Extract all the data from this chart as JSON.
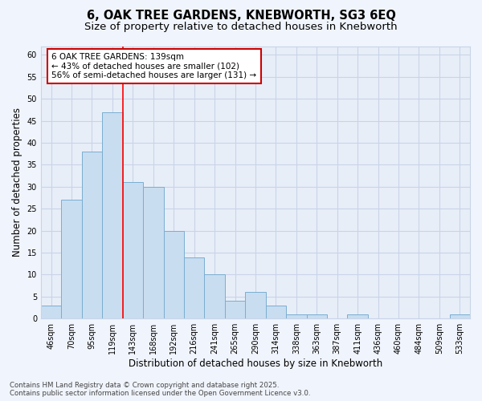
{
  "title_line1": "6, OAK TREE GARDENS, KNEBWORTH, SG3 6EQ",
  "title_line2": "Size of property relative to detached houses in Knebworth",
  "xlabel": "Distribution of detached houses by size in Knebworth",
  "ylabel": "Number of detached properties",
  "categories": [
    "46sqm",
    "70sqm",
    "95sqm",
    "119sqm",
    "143sqm",
    "168sqm",
    "192sqm",
    "216sqm",
    "241sqm",
    "265sqm",
    "290sqm",
    "314sqm",
    "338sqm",
    "363sqm",
    "387sqm",
    "411sqm",
    "436sqm",
    "460sqm",
    "484sqm",
    "509sqm",
    "533sqm"
  ],
  "values": [
    3,
    27,
    38,
    47,
    31,
    30,
    20,
    14,
    10,
    4,
    6,
    3,
    1,
    1,
    0,
    1,
    0,
    0,
    0,
    0,
    1
  ],
  "bar_color": "#c8ddf0",
  "bar_edge_color": "#7aaed0",
  "bar_edge_width": 0.7,
  "grid_color": "#c8d4e8",
  "background_color": "#f0f4fc",
  "plot_bg_color": "#e8eef8",
  "red_line_index": 4,
  "annotation_text_line1": "6 OAK TREE GARDENS: 139sqm",
  "annotation_text_line2": "← 43% of detached houses are smaller (102)",
  "annotation_text_line3": "56% of semi-detached houses are larger (131) →",
  "annotation_box_color": "#ffffff",
  "annotation_box_edge": "#cc0000",
  "ylim": [
    0,
    62
  ],
  "yticks": [
    0,
    5,
    10,
    15,
    20,
    25,
    30,
    35,
    40,
    45,
    50,
    55,
    60
  ],
  "footer_line1": "Contains HM Land Registry data © Crown copyright and database right 2025.",
  "footer_line2": "Contains public sector information licensed under the Open Government Licence v3.0.",
  "title_fontsize": 10.5,
  "subtitle_fontsize": 9.5,
  "axis_label_fontsize": 8.5,
  "tick_fontsize": 7,
  "annotation_fontsize": 7.5,
  "footer_fontsize": 6.2
}
